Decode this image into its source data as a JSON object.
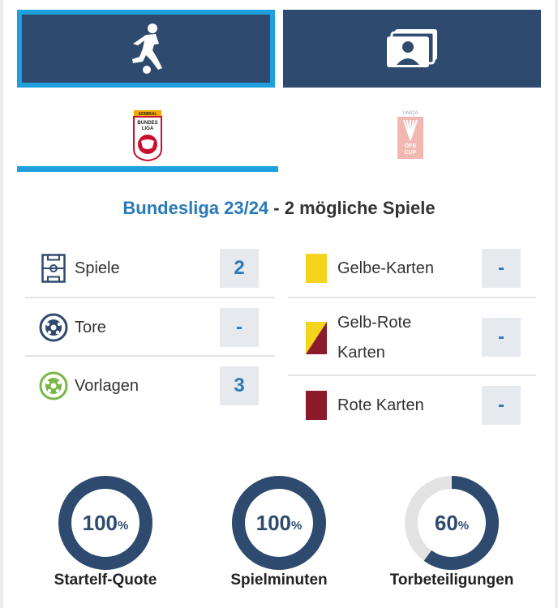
{
  "tabs": [
    {
      "name": "player-tab",
      "icon": "football-player-icon",
      "active": true
    },
    {
      "name": "profile-tab",
      "icon": "profile-cards-icon",
      "active": false
    }
  ],
  "competitions": [
    {
      "name": "bundesliga",
      "logo_text_top": "ADMIRAL",
      "logo_text_mid": "BUNDES",
      "logo_text_bot": "LIGA",
      "active": true
    },
    {
      "name": "ofb-cup",
      "logo_text_top": "UNIQA",
      "logo_text_mid": "ÖFB",
      "logo_text_bot": "CUP",
      "active": false
    }
  ],
  "season": {
    "title": "Bundesliga 23/24",
    "separator": " - ",
    "subtitle": "2 mögliche Spiele"
  },
  "stats_left": [
    {
      "label": "Spiele",
      "value": "2",
      "icon": "pitch-icon"
    },
    {
      "label": "Tore",
      "value": "-",
      "icon": "ball-icon"
    },
    {
      "label": "Vorlagen",
      "value": "3",
      "icon": "assist-ball-icon"
    }
  ],
  "stats_right": [
    {
      "label": "Gelbe-Karten",
      "value": "-",
      "icon": "yellow-card-icon"
    },
    {
      "label_line1": "Gelb-Rote",
      "label_line2": "Karten",
      "value": "-",
      "icon": "yellow-red-card-icon"
    },
    {
      "label": "Rote Karten",
      "value": "-",
      "icon": "red-card-icon"
    }
  ],
  "circles": [
    {
      "label": "Startelf-Quote",
      "value": "100",
      "unit": "%",
      "percent": 100
    },
    {
      "label": "Spielminuten",
      "value": "100",
      "unit": "%",
      "percent": 100
    },
    {
      "label": "Torbeteiligungen",
      "value": "60",
      "unit": "%",
      "percent": 60
    }
  ],
  "colors": {
    "navy": "#2e4a6e",
    "accent": "#1fa0dc",
    "value_blue": "#2a7ab8",
    "yellow": "#f5d41e",
    "red": "#8b1a2b",
    "green": "#7ab648",
    "track": "#e3e3e3"
  }
}
